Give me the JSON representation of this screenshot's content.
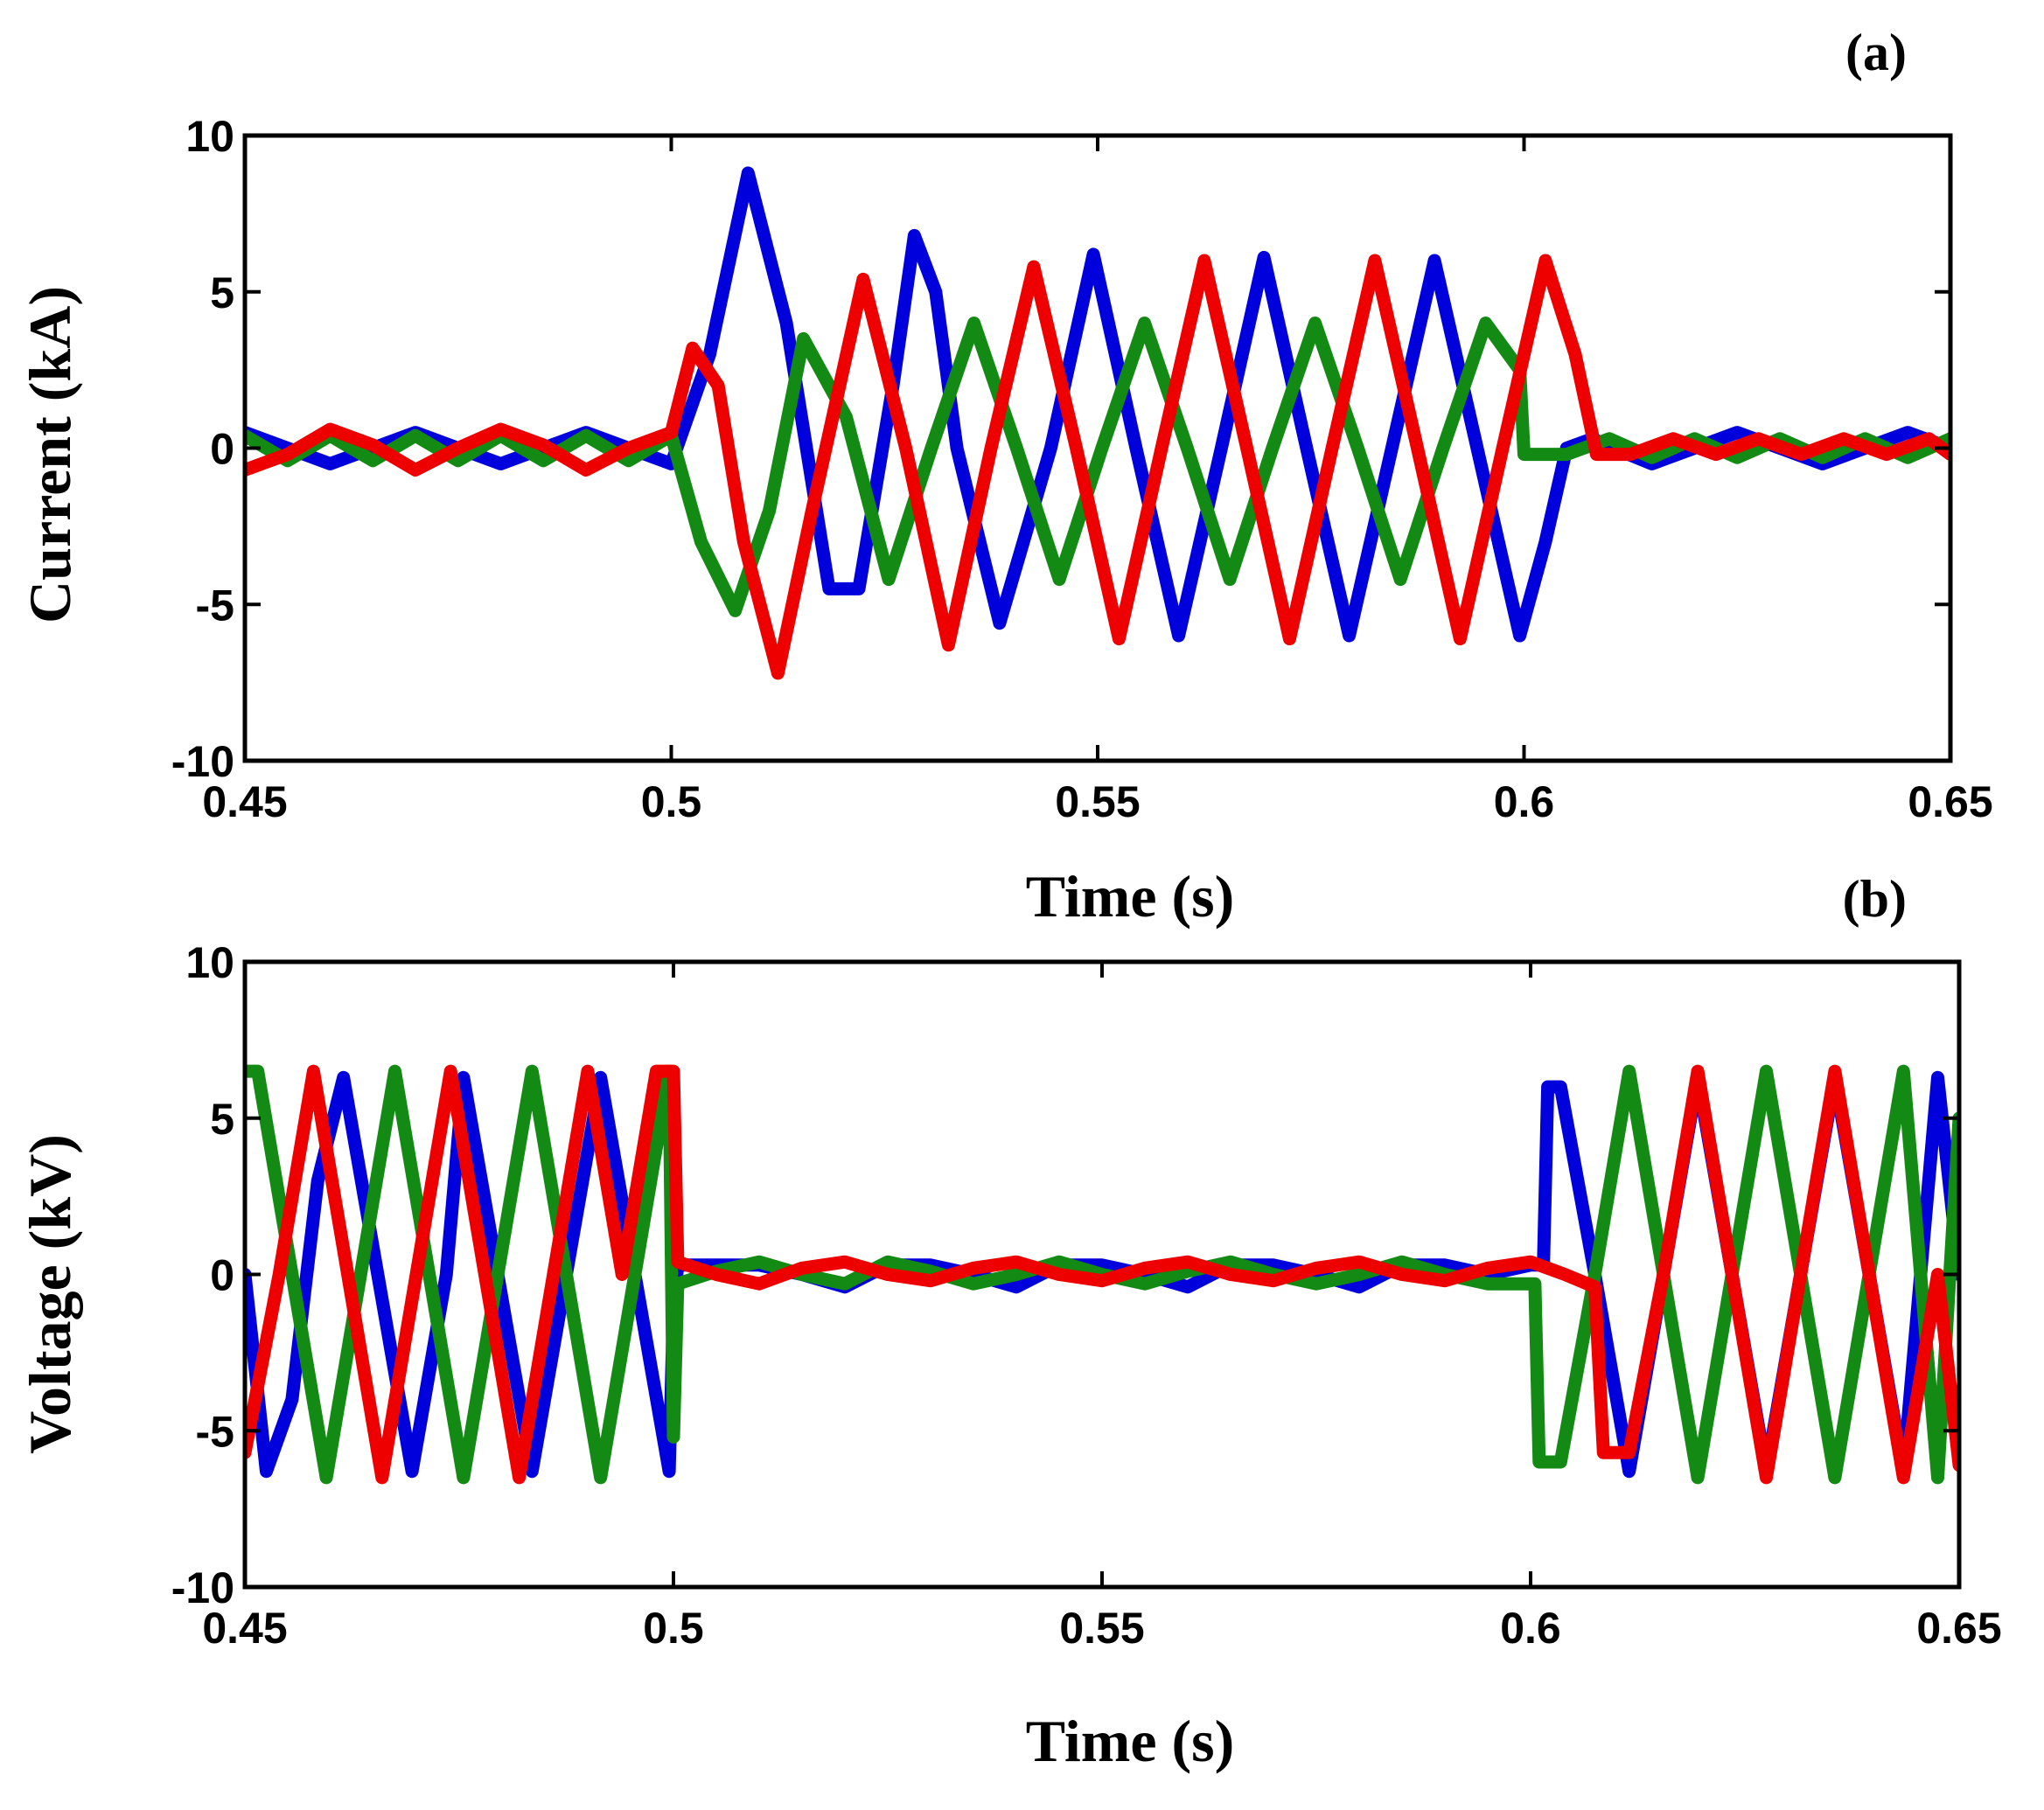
{
  "chart_data": [
    {
      "type": "line",
      "panel_label": "(a)",
      "xlabel": "Time (s)",
      "ylabel": "Current (kA)",
      "xlim": [
        0.45,
        0.65
      ],
      "ylim": [
        -10,
        10
      ],
      "xticks": [
        "0.45",
        "0.5",
        "0.55",
        "0.6",
        "0.65"
      ],
      "yticks": [
        "10",
        "5",
        "0",
        "-5",
        "-10"
      ],
      "grid": false,
      "legend": "none",
      "series": [
        {
          "color": "#0000dd",
          "x": [
            0.45,
            0.455,
            0.46,
            0.465,
            0.47,
            0.475,
            0.48,
            0.485,
            0.49,
            0.495,
            0.5,
            0.5045,
            0.509,
            0.5135,
            0.5185,
            0.522,
            0.526,
            0.5285,
            0.531,
            0.5335,
            0.5385,
            0.5445,
            0.5495,
            0.5545,
            0.5595,
            0.5645,
            0.5695,
            0.5745,
            0.5795,
            0.5845,
            0.5895,
            0.5945,
            0.5995,
            0.6025,
            0.605,
            0.608,
            0.6105,
            0.615,
            0.62,
            0.625,
            0.63,
            0.635,
            0.64,
            0.645,
            0.65
          ],
          "y": [
            0.5,
            0,
            -0.5,
            0,
            0.5,
            0,
            -0.5,
            0,
            0.5,
            0,
            -0.5,
            3,
            8.8,
            4,
            -4.5,
            -4.5,
            2,
            6.8,
            5,
            0,
            -5.6,
            0,
            6.2,
            0,
            -6,
            0,
            6.1,
            0,
            -6,
            0,
            6,
            0,
            -6,
            -3,
            0,
            0.3,
            0,
            -0.5,
            0,
            0.5,
            0,
            -0.5,
            0,
            0.5,
            0
          ]
        },
        {
          "color": "#138a13",
          "x": [
            0.45,
            0.455,
            0.46,
            0.465,
            0.47,
            0.475,
            0.48,
            0.485,
            0.49,
            0.495,
            0.5,
            0.5035,
            0.5075,
            0.5115,
            0.5155,
            0.5205,
            0.5255,
            0.5305,
            0.5355,
            0.5405,
            0.5455,
            0.5505,
            0.5555,
            0.5605,
            0.5655,
            0.5705,
            0.5755,
            0.5805,
            0.5855,
            0.5905,
            0.5955,
            0.5995,
            0.6,
            0.605,
            0.61,
            0.615,
            0.62,
            0.625,
            0.63,
            0.635,
            0.64,
            0.645,
            0.65
          ],
          "y": [
            0.4,
            -0.4,
            0.4,
            -0.4,
            0.4,
            -0.4,
            0.4,
            -0.4,
            0.4,
            -0.4,
            0.4,
            -3,
            -5.2,
            -2,
            3.5,
            1,
            -4.2,
            0,
            4,
            0,
            -4.2,
            0,
            4,
            0,
            -4.2,
            0,
            4,
            0,
            -4.2,
            0,
            4,
            2.5,
            -0.2,
            -0.2,
            0.3,
            -0.3,
            0.3,
            -0.3,
            0.3,
            -0.3,
            0.3,
            -0.3,
            0.3
          ]
        },
        {
          "color": "#ee0000",
          "x": [
            0.45,
            0.455,
            0.46,
            0.465,
            0.47,
            0.475,
            0.48,
            0.485,
            0.49,
            0.495,
            0.5,
            0.5025,
            0.5055,
            0.5085,
            0.5125,
            0.5165,
            0.5225,
            0.5275,
            0.5325,
            0.5375,
            0.5425,
            0.5475,
            0.5525,
            0.5575,
            0.5625,
            0.5675,
            0.5725,
            0.5775,
            0.5825,
            0.5875,
            0.5925,
            0.5975,
            0.6025,
            0.606,
            0.6085,
            0.6125,
            0.6175,
            0.6225,
            0.6275,
            0.6325,
            0.6375,
            0.6425,
            0.6475,
            0.65
          ],
          "y": [
            -0.7,
            -0.2,
            0.6,
            0.1,
            -0.7,
            0,
            0.6,
            0.1,
            -0.7,
            0,
            0.5,
            3.2,
            2,
            -3,
            -7.2,
            -2,
            5.4,
            0,
            -6.3,
            0,
            5.8,
            0,
            -6.1,
            0,
            6,
            0,
            -6.1,
            0,
            6,
            0,
            -6.1,
            0,
            6,
            3,
            -0.2,
            -0.2,
            0.3,
            -0.2,
            0.3,
            -0.2,
            0.3,
            -0.2,
            0.3,
            -0.2
          ]
        }
      ]
    },
    {
      "type": "line",
      "panel_label": "(b)",
      "xlabel": "Time (s)",
      "ylabel": "Voltage (kV)",
      "xlim": [
        0.45,
        0.65
      ],
      "ylim": [
        -10,
        10
      ],
      "xticks": [
        "0.45",
        "0.5",
        "0.55",
        "0.6",
        "0.65"
      ],
      "yticks": [
        "10",
        "5",
        "0",
        "-5",
        "-10"
      ],
      "grid": false,
      "legend": "none",
      "series": [
        {
          "color": "#0000dd",
          "x": [
            0.45,
            0.4525,
            0.4555,
            0.4585,
            0.4615,
            0.4655,
            0.4695,
            0.4735,
            0.4755,
            0.4795,
            0.4835,
            0.4875,
            0.4915,
            0.4955,
            0.4995,
            0.5,
            0.5005,
            0.505,
            0.51,
            0.515,
            0.52,
            0.525,
            0.53,
            0.535,
            0.54,
            0.545,
            0.55,
            0.555,
            0.56,
            0.565,
            0.57,
            0.575,
            0.58,
            0.585,
            0.59,
            0.595,
            0.6,
            0.6015,
            0.602,
            0.6035,
            0.6075,
            0.6115,
            0.6155,
            0.6195,
            0.6235,
            0.6275,
            0.6315,
            0.6355,
            0.6395,
            0.6435,
            0.6475,
            0.65
          ],
          "y": [
            0,
            -6.3,
            -4,
            3,
            6.3,
            0,
            -6.3,
            0,
            6.3,
            0,
            -6.3,
            0,
            6.3,
            0,
            -6.3,
            -1,
            0.3,
            0.3,
            0.3,
            0,
            -0.4,
            0.3,
            0.3,
            0,
            -0.4,
            0.3,
            0.3,
            0,
            -0.4,
            0.3,
            0.3,
            0,
            -0.4,
            0.3,
            0.3,
            0,
            0.3,
            0.3,
            6,
            6,
            0,
            -6.3,
            0,
            6.3,
            0,
            -6.3,
            0,
            6.3,
            0,
            -6.3,
            6.3,
            0
          ]
        },
        {
          "color": "#138a13",
          "x": [
            0.45,
            0.4515,
            0.4555,
            0.4595,
            0.4635,
            0.4675,
            0.4715,
            0.4755,
            0.4795,
            0.4835,
            0.4875,
            0.4915,
            0.4955,
            0.4995,
            0.5,
            0.5005,
            0.505,
            0.51,
            0.515,
            0.52,
            0.525,
            0.53,
            0.535,
            0.54,
            0.545,
            0.55,
            0.555,
            0.56,
            0.565,
            0.57,
            0.575,
            0.58,
            0.585,
            0.59,
            0.595,
            0.6,
            0.6005,
            0.601,
            0.6035,
            0.6075,
            0.6115,
            0.6155,
            0.6195,
            0.6235,
            0.6275,
            0.6315,
            0.6355,
            0.6395,
            0.6435,
            0.6475,
            0.65
          ],
          "y": [
            6.5,
            6.5,
            0,
            -6.5,
            0,
            6.5,
            0,
            -6.5,
            0,
            6.5,
            0,
            -6.5,
            0,
            6.5,
            -5.2,
            -0.3,
            0.1,
            0.4,
            0,
            -0.3,
            0.4,
            0.1,
            -0.3,
            0,
            0.4,
            0,
            -0.3,
            0.1,
            0.4,
            0,
            -0.3,
            0,
            0.4,
            0,
            -0.3,
            -0.3,
            -0.3,
            -6,
            -6,
            0,
            6.5,
            0,
            -6.5,
            0,
            6.5,
            0,
            -6.5,
            0,
            6.5,
            -6.5,
            5
          ]
        },
        {
          "color": "#ee0000",
          "x": [
            0.45,
            0.454,
            0.458,
            0.462,
            0.466,
            0.47,
            0.474,
            0.478,
            0.482,
            0.486,
            0.49,
            0.494,
            0.498,
            0.5,
            0.5005,
            0.505,
            0.51,
            0.515,
            0.52,
            0.525,
            0.53,
            0.535,
            0.54,
            0.545,
            0.55,
            0.555,
            0.56,
            0.565,
            0.57,
            0.575,
            0.58,
            0.585,
            0.59,
            0.595,
            0.6,
            0.604,
            0.6075,
            0.6085,
            0.6115,
            0.6155,
            0.6195,
            0.6235,
            0.6275,
            0.6315,
            0.6355,
            0.6395,
            0.6435,
            0.6475,
            0.65
          ],
          "y": [
            -5.7,
            0,
            6.5,
            0,
            -6.5,
            0,
            6.5,
            0,
            -6.5,
            0,
            6.5,
            0,
            6.5,
            6.5,
            0.4,
            0,
            -0.3,
            0.2,
            0.4,
            0,
            -0.2,
            0.2,
            0.4,
            0,
            -0.2,
            0.2,
            0.4,
            0,
            -0.2,
            0.2,
            0.4,
            0,
            -0.2,
            0.2,
            0.4,
            0,
            -0.4,
            -5.7,
            -5.7,
            0,
            6.5,
            0,
            -6.5,
            0,
            6.5,
            0,
            -6.5,
            0,
            -6.1
          ]
        }
      ]
    }
  ]
}
